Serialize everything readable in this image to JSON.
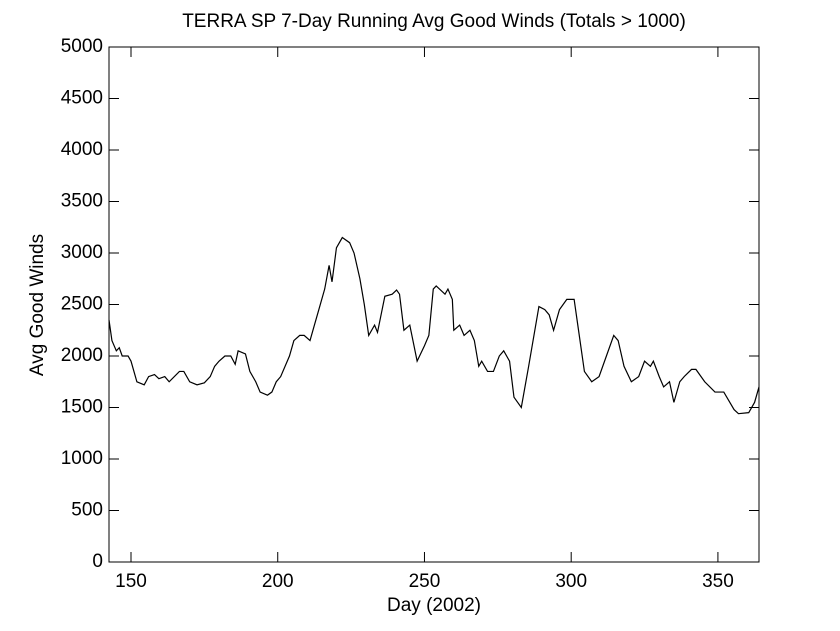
{
  "chart_data": {
    "type": "line",
    "title": "TERRA SP 7-Day Running Avg Good Winds (Totals > 1000)",
    "xlabel": "Day (2002)",
    "ylabel": "Avg Good Winds",
    "xlim": [
      142.5,
      364
    ],
    "ylim": [
      0,
      5000
    ],
    "xticks": [
      150,
      200,
      250,
      300,
      350
    ],
    "yticks": [
      0,
      500,
      1000,
      1500,
      2000,
      2500,
      3000,
      3500,
      4000,
      4500,
      5000
    ],
    "grid": false,
    "series": [
      {
        "color": "#000000",
        "x": [
          142.5,
          143.5,
          145,
          146,
          147,
          149,
          150,
          152,
          154.5,
          156,
          158,
          159.5,
          161.5,
          163,
          166.5,
          168,
          170,
          172.5,
          175,
          177,
          178.5,
          180,
          182,
          184,
          185.5,
          186.5,
          189,
          190.5,
          192.5,
          194,
          196.5,
          198,
          199.5,
          201,
          204,
          205.5,
          207.5,
          209,
          211,
          212.5,
          214,
          216,
          217.5,
          218.5,
          220,
          222,
          224.5,
          226,
          228,
          229.5,
          231,
          233,
          234,
          236.5,
          239,
          240.5,
          241.5,
          243,
          245,
          247.5,
          250,
          251.5,
          253,
          254,
          257,
          258,
          259.5,
          260,
          262,
          263.5,
          265.5,
          267,
          268.5,
          269.5,
          271.5,
          273.5,
          275.5,
          277,
          279,
          280.5,
          283,
          285.5,
          289,
          291,
          292.5,
          294,
          296,
          298.5,
          301,
          302.5,
          304.5,
          307,
          309.5,
          312,
          314.5,
          316,
          318,
          320.5,
          323,
          325,
          327,
          328,
          330,
          331.5,
          333.5,
          335,
          337,
          338.5,
          341,
          342.5,
          345.5,
          349,
          352,
          355.5,
          357,
          360.5,
          362.5,
          364
        ],
        "values": [
          2350,
          2150,
          2050,
          2080,
          2000,
          2000,
          1950,
          1750,
          1720,
          1800,
          1820,
          1780,
          1800,
          1750,
          1850,
          1850,
          1750,
          1720,
          1740,
          1800,
          1900,
          1950,
          2000,
          2000,
          1920,
          2050,
          2020,
          1850,
          1750,
          1650,
          1620,
          1650,
          1750,
          1800,
          2000,
          2150,
          2200,
          2200,
          2150,
          2300,
          2450,
          2650,
          2880,
          2720,
          3050,
          3150,
          3100,
          3000,
          2750,
          2500,
          2200,
          2300,
          2230,
          2580,
          2600,
          2640,
          2600,
          2250,
          2300,
          1950,
          2100,
          2200,
          2650,
          2680,
          2600,
          2650,
          2550,
          2250,
          2300,
          2200,
          2250,
          2150,
          1900,
          1950,
          1850,
          1850,
          2000,
          2050,
          1950,
          1600,
          1500,
          1900,
          2480,
          2450,
          2400,
          2250,
          2450,
          2550,
          2550,
          2250,
          1850,
          1750,
          1800,
          2000,
          2200,
          2150,
          1900,
          1750,
          1800,
          1950,
          1900,
          1950,
          1800,
          1700,
          1750,
          1550,
          1750,
          1800,
          1870,
          1870,
          1750,
          1650,
          1650,
          1480,
          1440,
          1450,
          1550,
          1700
        ]
      }
    ]
  }
}
